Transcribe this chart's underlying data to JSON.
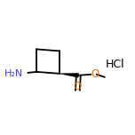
{
  "background_color": "#ffffff",
  "bond_color": "#000000",
  "atom_colors": {
    "O": "#e07010",
    "N": "#4040ff",
    "C": "#000000"
  },
  "hcl_text": "HCl",
  "nh2_text": "H₂N",
  "o_text": "O",
  "figsize": [
    1.52,
    1.52
  ],
  "dpi": 100
}
